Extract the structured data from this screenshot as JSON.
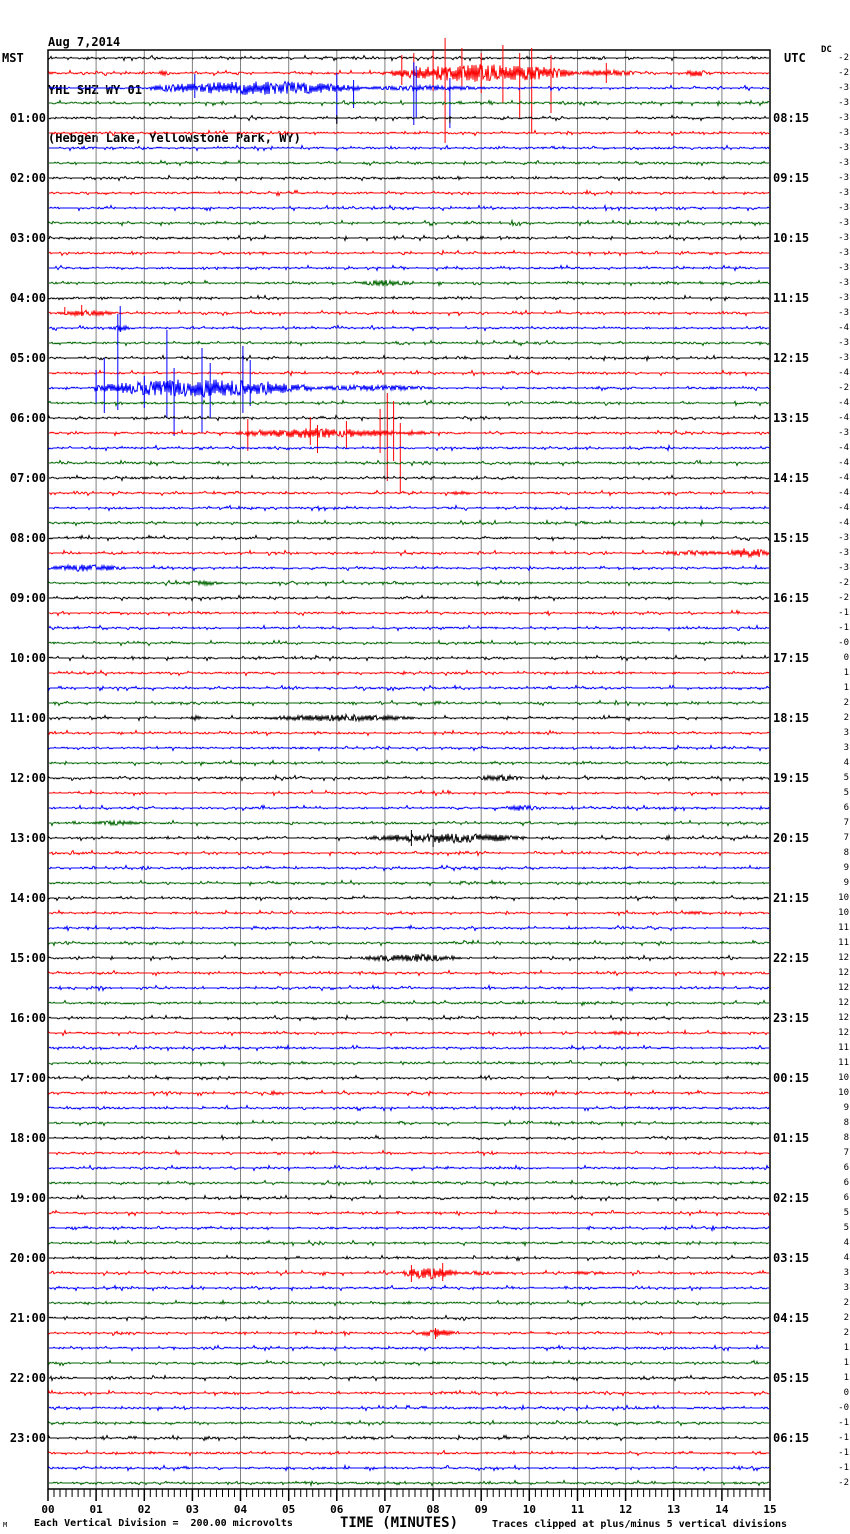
{
  "header": {
    "date": "Aug 7,2014",
    "station": "YHL SHZ WY 01",
    "location": "(Hebgen Lake, Yellowstone Park, WY)"
  },
  "axes": {
    "left_timezone": "MST",
    "right_timezone": "UTC",
    "dc_label": "DC",
    "x_axis_title": "TIME (MINUTES)"
  },
  "footer": {
    "scale_note": "Each Vertical Division =  200.00 microvolts",
    "clip_note": "Traces clipped at plus/minus 5 vertical divisions",
    "watermark": "M"
  },
  "chart_data": {
    "type": "line",
    "subtype": "helicorder-seismogram",
    "title": "YHL SHZ WY 01 (Hebgen Lake, Yellowstone Park, WY) — Aug 7,2014",
    "xlabel": "TIME (MINUTES)",
    "xlim": [
      0,
      15
    ],
    "minutes_per_line": 15,
    "traces_per_hour": 4,
    "hours": 24,
    "division_microvolts": 200.0,
    "clip_divisions": 5,
    "grid": true,
    "grid_color": "#808080",
    "trace_color_cycle": [
      "#000000",
      "#ff0000",
      "#0000ff",
      "#006600"
    ],
    "x_tick_labels": [
      "00",
      "01",
      "02",
      "03",
      "04",
      "05",
      "06",
      "07",
      "08",
      "09",
      "10",
      "11",
      "12",
      "13",
      "14",
      "15"
    ],
    "left_labels": [
      "01:00",
      "02:00",
      "03:00",
      "04:00",
      "05:00",
      "06:00",
      "07:00",
      "08:00",
      "09:00",
      "10:00",
      "11:00",
      "12:00",
      "13:00",
      "14:00",
      "15:00",
      "16:00",
      "17:00",
      "18:00",
      "19:00",
      "20:00",
      "21:00",
      "22:00",
      "23:00"
    ],
    "right_labels": [
      "08:15",
      "09:15",
      "10:15",
      "11:15",
      "12:15",
      "13:15",
      "14:15",
      "15:15",
      "16:15",
      "17:15",
      "18:15",
      "19:15",
      "20:15",
      "21:15",
      "22:15",
      "23:15",
      "00:15",
      "01:15",
      "02:15",
      "03:15",
      "04:15",
      "05:15",
      "06:15"
    ],
    "dc_offsets": [
      "-2",
      "-2",
      "-3",
      "-3",
      "-3",
      "-3",
      "-3",
      "-3",
      "-3",
      "-3",
      "-3",
      "-3",
      "-3",
      "-3",
      "-3",
      "-3",
      "-3",
      "-3",
      "-4",
      "-3",
      "-3",
      "-4",
      "-2",
      "-4",
      "-4",
      "-3",
      "-4",
      "-4",
      "-4",
      "-4",
      "-4",
      "-4",
      "-3",
      "-3",
      "-3",
      "-2",
      "-2",
      "-1",
      "-1",
      "-0",
      "0",
      "1",
      "1",
      "2",
      "2",
      "3",
      "3",
      "4",
      "5",
      "5",
      "6",
      "7",
      "7",
      "8",
      "9",
      "9",
      "10",
      "10",
      "11",
      "11",
      "12",
      "12",
      "12",
      "12",
      "12",
      "12",
      "11",
      "11",
      "10",
      "10",
      "9",
      "8",
      "8",
      "7",
      "6",
      "6",
      "6",
      "5",
      "5",
      "4",
      "4",
      "3",
      "3",
      "2",
      "2",
      "2",
      "1",
      "1",
      "1",
      "0",
      "-0",
      "-1",
      "-1",
      "-1",
      "-1",
      "-2"
    ],
    "events": [
      {
        "row": 1,
        "t0": 2.3,
        "t1": 2.55,
        "amp": 3
      },
      {
        "row": 1,
        "t0": 7.1,
        "t1": 11.0,
        "amp": 9
      },
      {
        "row": 1,
        "t0": 11.0,
        "t1": 12.3,
        "amp": 3
      },
      {
        "row": 1,
        "t0": 13.25,
        "t1": 13.7,
        "amp": 4
      },
      {
        "row": 2,
        "t0": 2.1,
        "t1": 6.5,
        "amp": 7
      },
      {
        "row": 2,
        "t0": 6.5,
        "t1": 9.2,
        "amp": 2.5
      },
      {
        "row": 15,
        "t0": 6.5,
        "t1": 7.5,
        "amp": 3
      },
      {
        "row": 17,
        "t0": 0.2,
        "t1": 1.4,
        "amp": 3
      },
      {
        "row": 18,
        "t0": 1.35,
        "t1": 1.7,
        "amp": 3
      },
      {
        "row": 22,
        "t0": 0.95,
        "t1": 5.5,
        "amp": 9
      },
      {
        "row": 22,
        "t0": 5.5,
        "t1": 8.0,
        "amp": 3
      },
      {
        "row": 25,
        "t0": 3.9,
        "t1": 7.35,
        "amp": 5
      },
      {
        "row": 25,
        "t0": 7.35,
        "t1": 7.9,
        "amp": 2.5
      },
      {
        "row": 29,
        "t0": 8.35,
        "t1": 8.8,
        "amp": 2
      },
      {
        "row": 33,
        "t0": 12.6,
        "t1": 14.1,
        "amp": 2.5
      },
      {
        "row": 33,
        "t0": 14.1,
        "t1": 15.0,
        "amp": 5
      },
      {
        "row": 34,
        "t0": 0.0,
        "t1": 1.6,
        "amp": 3.5
      },
      {
        "row": 35,
        "t0": 2.85,
        "t1": 3.6,
        "amp": 2.5
      },
      {
        "row": 44,
        "t0": 2.95,
        "t1": 3.2,
        "amp": 2.5
      },
      {
        "row": 44,
        "t0": 4.5,
        "t1": 7.6,
        "amp": 3.5
      },
      {
        "row": 48,
        "t0": 8.9,
        "t1": 9.9,
        "amp": 3
      },
      {
        "row": 50,
        "t0": 9.55,
        "t1": 10.2,
        "amp": 3
      },
      {
        "row": 51,
        "t0": 0.85,
        "t1": 2.0,
        "amp": 2.2
      },
      {
        "row": 52,
        "t0": 6.6,
        "t1": 9.9,
        "amp": 5
      },
      {
        "row": 57,
        "t0": 13.2,
        "t1": 13.7,
        "amp": 2
      },
      {
        "row": 60,
        "t0": 6.5,
        "t1": 8.6,
        "amp": 4
      },
      {
        "row": 65,
        "t0": 11.6,
        "t1": 12.2,
        "amp": 2
      },
      {
        "row": 69,
        "t0": 4.55,
        "t1": 4.85,
        "amp": 2
      },
      {
        "row": 81,
        "t0": 7.35,
        "t1": 8.5,
        "amp": 6
      },
      {
        "row": 81,
        "t0": 8.5,
        "t1": 9.5,
        "amp": 2
      },
      {
        "row": 81,
        "t0": 10.8,
        "t1": 11.7,
        "amp": 1.8
      },
      {
        "row": 85,
        "t0": 7.7,
        "t1": 8.45,
        "amp": 4
      }
    ],
    "spikes": [
      {
        "row": 1,
        "t": 7.35,
        "up": 18,
        "down": 12
      },
      {
        "row": 1,
        "t": 7.6,
        "up": 20,
        "down": 15
      },
      {
        "row": 1,
        "t": 8.0,
        "up": 22,
        "down": 18
      },
      {
        "row": 1,
        "t": 8.25,
        "up": 35,
        "down": 70
      },
      {
        "row": 1,
        "t": 8.6,
        "up": 25,
        "down": 15
      },
      {
        "row": 1,
        "t": 9.0,
        "up": 20,
        "down": 20
      },
      {
        "row": 1,
        "t": 9.45,
        "up": 28,
        "down": 30
      },
      {
        "row": 1,
        "t": 9.8,
        "up": 20,
        "down": 45
      },
      {
        "row": 1,
        "t": 10.05,
        "up": 25,
        "down": 60
      },
      {
        "row": 1,
        "t": 10.45,
        "up": 18,
        "down": 40
      },
      {
        "row": 1,
        "t": 11.6,
        "up": 10,
        "down": 10
      },
      {
        "row": 2,
        "t": 3.05,
        "up": 14,
        "down": 10
      },
      {
        "row": 2,
        "t": 6.0,
        "up": 15,
        "down": 35
      },
      {
        "row": 2,
        "t": 6.35,
        "up": 8,
        "down": 20
      },
      {
        "row": 2,
        "t": 7.6,
        "up": 26,
        "down": 37
      },
      {
        "row": 2,
        "t": 7.65,
        "up": 22,
        "down": 30
      },
      {
        "row": 2,
        "t": 8.35,
        "up": 10,
        "down": 40
      },
      {
        "row": 4,
        "t": 6.0,
        "up": 3,
        "down": 6
      },
      {
        "row": 4,
        "t": 8.35,
        "up": 2,
        "down": 5
      },
      {
        "row": 17,
        "t": 0.35,
        "up": 6,
        "down": 2
      },
      {
        "row": 17,
        "t": 0.7,
        "up": 8,
        "down": 3
      },
      {
        "row": 18,
        "t": 1.5,
        "up": 22,
        "down": 4
      },
      {
        "row": 22,
        "t": 1.0,
        "up": 18,
        "down": 16
      },
      {
        "row": 22,
        "t": 1.17,
        "up": 30,
        "down": 25
      },
      {
        "row": 22,
        "t": 1.45,
        "up": 74,
        "down": 22
      },
      {
        "row": 22,
        "t": 2.0,
        "up": 12,
        "down": 20
      },
      {
        "row": 22,
        "t": 2.47,
        "up": 58,
        "down": 30
      },
      {
        "row": 22,
        "t": 2.62,
        "up": 20,
        "down": 48
      },
      {
        "row": 22,
        "t": 3.2,
        "up": 40,
        "down": 45
      },
      {
        "row": 22,
        "t": 3.37,
        "up": 25,
        "down": 30
      },
      {
        "row": 22,
        "t": 4.05,
        "up": 42,
        "down": 25
      },
      {
        "row": 22,
        "t": 4.2,
        "up": 28,
        "down": 18
      },
      {
        "row": 25,
        "t": 4.15,
        "up": 14,
        "down": 18
      },
      {
        "row": 25,
        "t": 5.45,
        "up": 16,
        "down": 12
      },
      {
        "row": 25,
        "t": 5.6,
        "up": 8,
        "down": 20
      },
      {
        "row": 25,
        "t": 6.2,
        "up": 12,
        "down": 15
      },
      {
        "row": 25,
        "t": 6.9,
        "up": 24,
        "down": 20
      },
      {
        "row": 25,
        "t": 7.05,
        "up": 40,
        "down": 48
      },
      {
        "row": 25,
        "t": 7.18,
        "up": 32,
        "down": 28
      },
      {
        "row": 25,
        "t": 7.32,
        "up": 10,
        "down": 60
      },
      {
        "row": 52,
        "t": 7.55,
        "up": 8,
        "down": 8
      },
      {
        "row": 52,
        "t": 8.0,
        "up": 9,
        "down": 9
      },
      {
        "row": 81,
        "t": 7.55,
        "up": 8,
        "down": 9
      },
      {
        "row": 81,
        "t": 8.2,
        "up": 10,
        "down": 8
      },
      {
        "row": 85,
        "t": 8.05,
        "up": 5,
        "down": 6
      }
    ]
  }
}
